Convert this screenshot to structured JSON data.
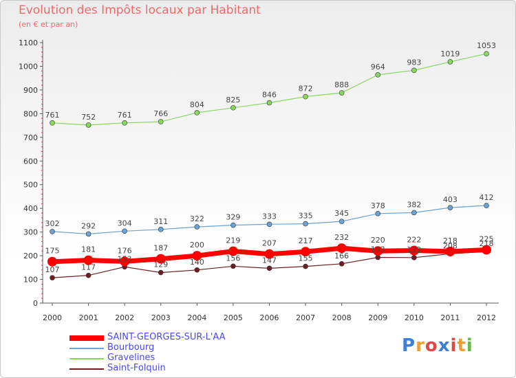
{
  "header": {
    "title": "Evolution des Impôts locaux par Habitant",
    "subtitle": "(en € et par an)"
  },
  "logo": {
    "letters": [
      "P",
      "r",
      "o",
      "x",
      "i",
      "t",
      "i"
    ],
    "colors": [
      "#3b7fd6",
      "#f0a030",
      "#e04848",
      "#3b7fd6",
      "#e04848",
      "#f0a030",
      "#68b848"
    ]
  },
  "chart_data": {
    "type": "line",
    "x": [
      "2000",
      "2001",
      "2002",
      "2003",
      "2004",
      "2005",
      "2006",
      "2007",
      "2008",
      "2009",
      "2010",
      "2011",
      "2012"
    ],
    "ylim": [
      0,
      1100
    ],
    "yticks": [
      0,
      100,
      200,
      300,
      400,
      500,
      600,
      700,
      800,
      900,
      1000,
      1100
    ],
    "grid": false,
    "legend_position": "bottom-left",
    "series": [
      {
        "name": "Saint-Folquin",
        "color": "#6b1f24",
        "width": 1.2,
        "marker": 3.5,
        "values": [
          107,
          117,
          153,
          129,
          140,
          156,
          147,
          155,
          166,
          193,
          192,
          208,
          218
        ],
        "labels": [
          "107",
          "117",
          "153",
          "129",
          "140",
          "156",
          "147",
          "155",
          "166",
          "193",
          "192",
          "208",
          "218"
        ]
      },
      {
        "name": "Gravelines",
        "color": "#88d860",
        "width": 1.2,
        "marker": 3.5,
        "values": [
          761,
          752,
          761,
          766,
          804,
          825,
          846,
          872,
          888,
          964,
          983,
          1019,
          1053
        ],
        "labels": [
          "761",
          "752",
          "761",
          "766",
          "804",
          "825",
          "846",
          "872",
          "888",
          "964",
          "983",
          "1019",
          "1053"
        ]
      },
      {
        "name": "Bourbourg",
        "color": "#6aa3d4",
        "width": 1.2,
        "marker": 3.5,
        "values": [
          302,
          292,
          304,
          311,
          322,
          329,
          333,
          335,
          345,
          378,
          382,
          403,
          412
        ],
        "labels": [
          "302",
          "292",
          "304",
          "311",
          "322",
          "329",
          "333",
          "335",
          "345",
          "378",
          "382",
          "403",
          "412"
        ]
      },
      {
        "name": "SAINT-GEORGES-SUR-L'AA",
        "color": "#ff0000",
        "width": 7,
        "marker": 7,
        "values": [
          175,
          181,
          176,
          187,
          200,
          219,
          207,
          217,
          232,
          220,
          222,
          218,
          225
        ],
        "labels": [
          "175",
          "181",
          "176",
          "187",
          "200",
          "219",
          "207",
          "217",
          "232",
          "220",
          "222",
          "218",
          "225"
        ]
      }
    ],
    "legend_order": [
      "SAINT-GEORGES-SUR-L'AA",
      "Bourbourg",
      "Gravelines",
      "Saint-Folquin"
    ]
  }
}
